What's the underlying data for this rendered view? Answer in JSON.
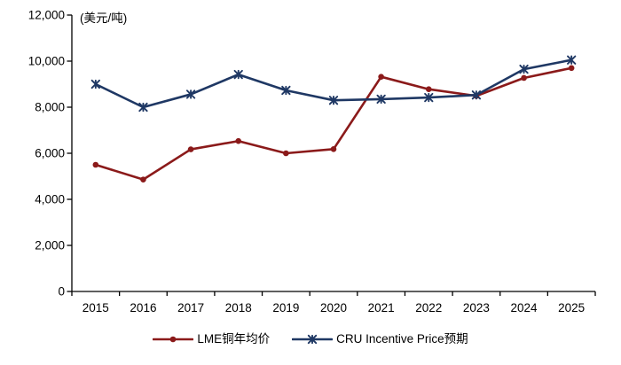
{
  "chart_data": {
    "type": "line",
    "title": "",
    "unit_label": "(美元/吨)",
    "xlabel": "",
    "ylabel": "",
    "categories": [
      "2015",
      "2016",
      "2017",
      "2018",
      "2019",
      "2020",
      "2021",
      "2022",
      "2023",
      "2024",
      "2025"
    ],
    "series": [
      {
        "name": "LME铜年均价",
        "color": "#8B1A1A",
        "marker": "circle",
        "values": [
          5500,
          4860,
          6170,
          6530,
          6000,
          6180,
          9320,
          8780,
          8490,
          9270,
          9700
        ]
      },
      {
        "name": "CRU Incentive Price预期",
        "color": "#1F3864",
        "marker": "asterisk",
        "values": [
          9000,
          8000,
          8560,
          9420,
          8730,
          8300,
          8350,
          8420,
          8530,
          9650,
          10050
        ]
      }
    ],
    "ylim": [
      0,
      12000
    ],
    "y_tick_values": [
      0,
      2000,
      4000,
      6000,
      8000,
      10000,
      12000
    ],
    "y_tick_labels": [
      "0",
      "2,000",
      "4,000",
      "6,000",
      "8,000",
      "10,000",
      "12,000"
    ],
    "grid": "off",
    "legend_position": "bottom",
    "axis_color": "#000000",
    "background_color": "#ffffff"
  }
}
